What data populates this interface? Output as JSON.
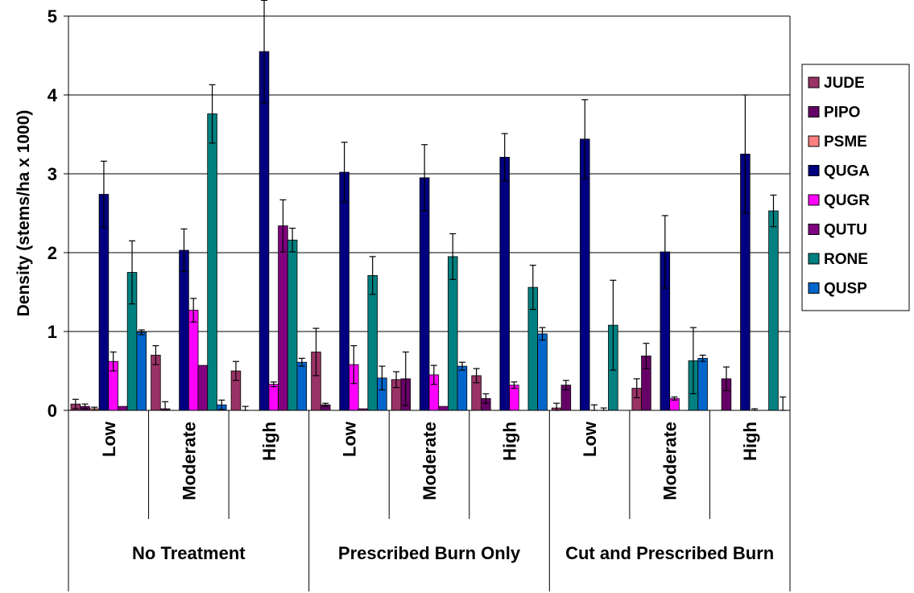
{
  "chart_data": {
    "type": "bar",
    "ylabel": "Density (stems/ha x 1000)",
    "ylim": [
      0,
      5
    ],
    "yticks": [
      "0",
      "1",
      "2",
      "3",
      "4",
      "5"
    ],
    "grid": true,
    "legend_position": "right",
    "groups": [
      "No Treatment",
      "Prescribed Burn Only",
      "Cut and Prescribed Burn"
    ],
    "subcategories": [
      "Low",
      "Moderate",
      "High"
    ],
    "series": [
      {
        "name": "JUDE",
        "color": "#993366",
        "values": [
          0.08,
          0.7,
          0.5,
          0.74,
          0.39,
          0.44,
          0.03,
          0.28,
          0.0
        ],
        "errors": [
          0.06,
          0.12,
          0.12,
          0.3,
          0.1,
          0.09,
          0.06,
          0.12,
          0.0
        ]
      },
      {
        "name": "PIPO",
        "color": "#660066",
        "values": [
          0.05,
          0.02,
          0.0,
          0.07,
          0.4,
          0.15,
          0.32,
          0.69,
          0.4
        ],
        "errors": [
          0.03,
          0.09,
          0.05,
          0.02,
          0.34,
          0.06,
          0.06,
          0.16,
          0.15
        ]
      },
      {
        "name": "PSME",
        "color": "#FF8080",
        "values": [
          0.02,
          0.0,
          0.0,
          0.0,
          0.0,
          0.0,
          0.0,
          0.0,
          0.0
        ],
        "errors": [
          0.02,
          0.0,
          0.0,
          0.0,
          0.0,
          0.0,
          0.0,
          0.0,
          0.0
        ]
      },
      {
        "name": "QUGA",
        "color": "#000080",
        "values": [
          2.74,
          2.03,
          4.55,
          3.02,
          2.95,
          3.21,
          3.44,
          2.01,
          3.25
        ],
        "errors": [
          0.42,
          0.27,
          0.65,
          0.38,
          0.42,
          0.3,
          0.5,
          0.46,
          0.75
        ]
      },
      {
        "name": "QUGR",
        "color": "#FF00FF",
        "values": [
          0.62,
          1.27,
          0.33,
          0.58,
          0.45,
          0.32,
          0.0,
          0.15,
          0.0
        ],
        "errors": [
          0.12,
          0.15,
          0.03,
          0.24,
          0.12,
          0.04,
          0.07,
          0.02,
          0.02
        ]
      },
      {
        "name": "QUTU",
        "color": "#800080",
        "values": [
          0.05,
          0.57,
          2.34,
          0.02,
          0.05,
          0.0,
          0.0,
          0.0,
          0.0
        ],
        "errors": [
          0.0,
          0.0,
          0.33,
          0.0,
          0.0,
          0.0,
          0.03,
          0.0,
          0.0
        ]
      },
      {
        "name": "RONE",
        "color": "#008080",
        "values": [
          1.75,
          3.76,
          2.16,
          1.71,
          1.95,
          1.56,
          1.08,
          0.63,
          2.53
        ],
        "errors": [
          0.4,
          0.37,
          0.15,
          0.24,
          0.29,
          0.28,
          0.57,
          0.42,
          0.2
        ]
      },
      {
        "name": "QUSP",
        "color": "#0066CC",
        "values": [
          0.99,
          0.07,
          0.61,
          0.41,
          0.56,
          0.97,
          0.0,
          0.66,
          0.0
        ],
        "errors": [
          0.03,
          0.06,
          0.05,
          0.15,
          0.05,
          0.08,
          0.0,
          0.04,
          0.17
        ]
      }
    ]
  }
}
